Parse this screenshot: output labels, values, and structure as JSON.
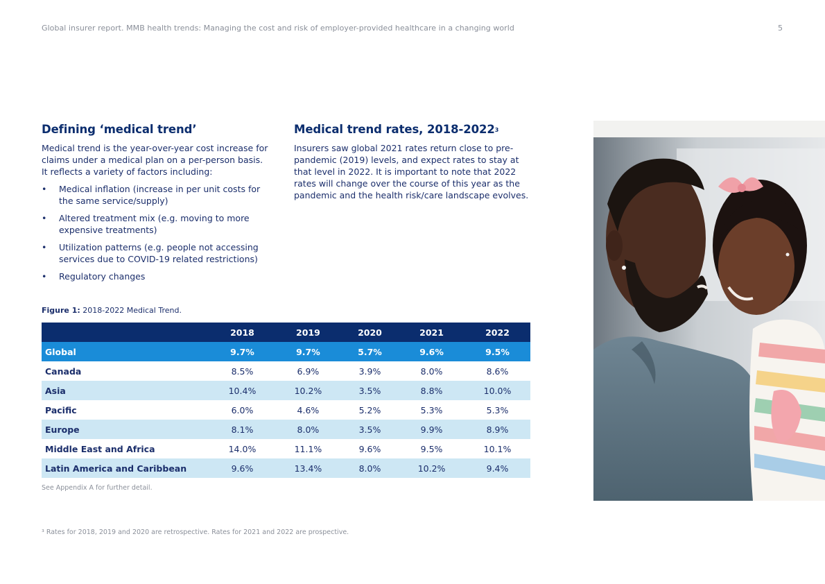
{
  "header": {
    "title": "Global insurer report. MMB health trends: Managing the cost and risk of employer-provided healthcare in a changing world",
    "page_number": "5"
  },
  "left": {
    "heading": "Defining ‘medical trend’",
    "paragraph": "Medical trend is the year-over-year cost increase for claims under a medical plan on a per-person basis. It reflects a variety of factors including:",
    "bullet_symbol": "•",
    "bullets": [
      "Medical inflation (increase in per unit costs for the same service/supply)",
      "Altered treatment mix (e.g. moving to more expensive treatments)",
      "Utilization patterns (e.g. people not accessing services due to COVID-19 related restrictions)",
      "Regulatory changes"
    ]
  },
  "right": {
    "heading": "Medical trend rates, 2018-2022",
    "heading_sup": "3",
    "paragraph": "Insurers saw global 2021 rates return close to pre-pandemic (2019) levels, and expect rates to stay at that level in 2022. It is important to note that 2022 rates will change over the course of this year as the pandemic and the health risk/care landscape evolves."
  },
  "figure": {
    "caption_label": "Figure 1:",
    "caption_text": " 2018-2022 Medical Trend."
  },
  "table": {
    "columns": [
      "2018",
      "2019",
      "2020",
      "2021",
      "2022"
    ],
    "rows": [
      {
        "region": "Global",
        "values": [
          "9.7%",
          "9.7%",
          "5.7%",
          "9.6%",
          "9.5%"
        ]
      },
      {
        "region": "Canada",
        "values": [
          "8.5%",
          "6.9%",
          "3.9%",
          "8.0%",
          "8.6%"
        ]
      },
      {
        "region": "Asia",
        "values": [
          "10.4%",
          "10.2%",
          "3.5%",
          "8.8%",
          "10.0%"
        ]
      },
      {
        "region": "Pacific",
        "values": [
          "6.0%",
          "4.6%",
          "5.2%",
          "5.3%",
          "5.3%"
        ]
      },
      {
        "region": "Europe",
        "values": [
          "8.1%",
          "8.0%",
          "3.5%",
          "9.9%",
          "8.9%"
        ]
      },
      {
        "region": "Middle East and Africa",
        "values": [
          "14.0%",
          "11.1%",
          "9.6%",
          "9.5%",
          "10.1%"
        ]
      },
      {
        "region": "Latin America and Caribbean",
        "values": [
          "9.6%",
          "13.4%",
          "8.0%",
          "10.2%",
          "9.4%"
        ]
      }
    ]
  },
  "note": "See Appendix A for further detail.",
  "footnote": "³ Rates for 2018, 2019 and 2020 are retrospective. Rates for 2021 and 2022 are prospective.",
  "colors": {
    "navy": "#0b2d6e",
    "global_row": "#1a8cd8",
    "light_row": "#cde7f4"
  }
}
